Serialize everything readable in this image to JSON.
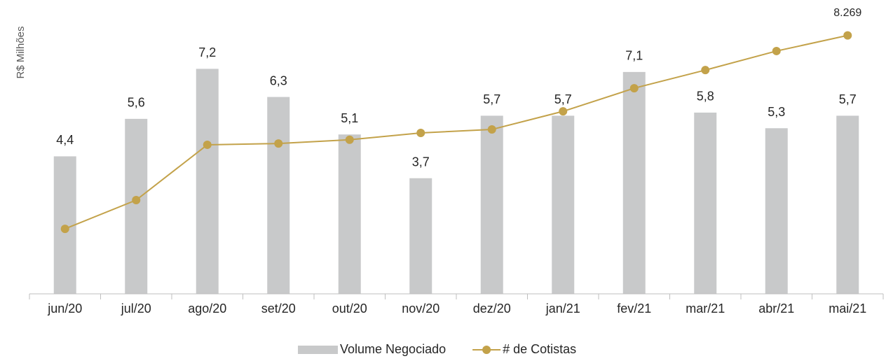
{
  "chart_data": {
    "type": "bar_line",
    "y_label": "R$ Milhões",
    "categories": [
      "jun/20",
      "jul/20",
      "ago/20",
      "set/20",
      "out/20",
      "nov/20",
      "dez/20",
      "jan/21",
      "fev/21",
      "mar/21",
      "abr/21",
      "mai/21"
    ],
    "series": [
      {
        "name": "Volume Negociado",
        "type": "bar",
        "color": "#c8c9ca",
        "axis": "y",
        "values": [
          4.4,
          5.6,
          7.2,
          6.3,
          5.1,
          3.7,
          5.7,
          5.7,
          7.1,
          5.8,
          5.3,
          5.7
        ],
        "value_labels": [
          "4,4",
          "5,6",
          "7,2",
          "6,3",
          "5,1",
          "3,7",
          "5,7",
          "5,7",
          "7,1",
          "5,8",
          "5,3",
          "5,7"
        ]
      },
      {
        "name": "# de Cotistas",
        "type": "line",
        "color": "#c3a24a",
        "axis": "y2",
        "values": [
          2080,
          3000,
          4770,
          4810,
          4930,
          5150,
          5260,
          5840,
          6580,
          7160,
          7770,
          8269
        ],
        "value_labels": [
          null,
          null,
          null,
          null,
          null,
          null,
          null,
          null,
          null,
          null,
          null,
          "8.269"
        ]
      }
    ],
    "ylim": [
      0,
      9
    ],
    "y2lim": [
      0,
      9000
    ],
    "legend": "bottom"
  }
}
